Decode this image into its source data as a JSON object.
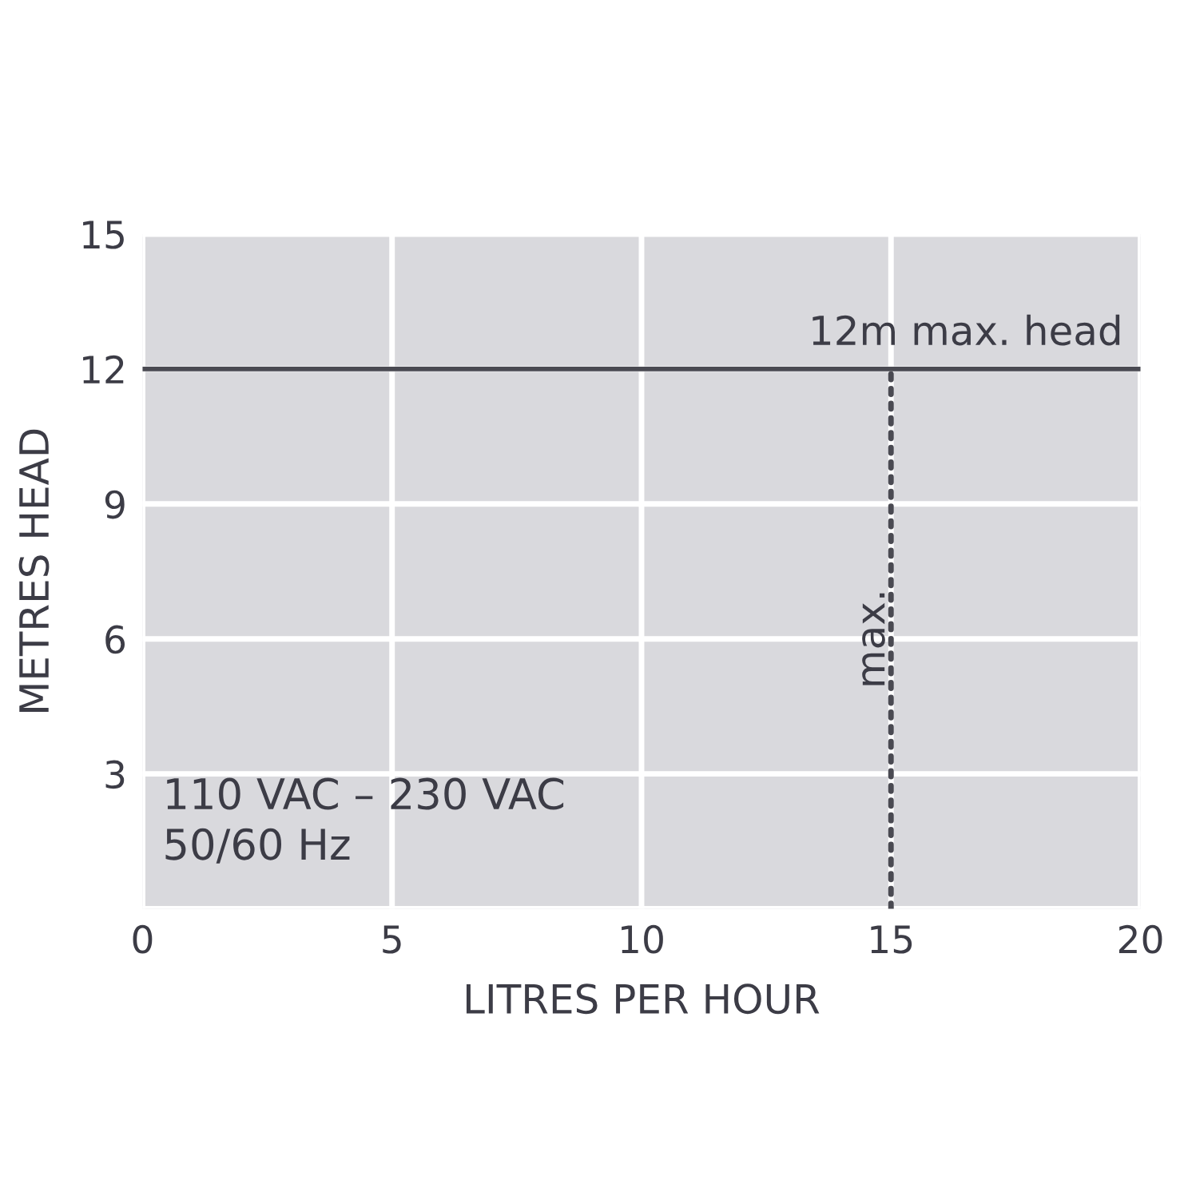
{
  "chart_data": {
    "type": "line",
    "xlabel": "LITRES PER HOUR",
    "ylabel": "METRES HEAD",
    "xlim": [
      0,
      20
    ],
    "ylim": [
      0,
      15
    ],
    "xticks": [
      0,
      5,
      10,
      15,
      20
    ],
    "yticks": [
      {
        "value": 0,
        "label": null
      },
      3,
      6,
      9,
      12,
      15
    ],
    "grid": true,
    "legend": false,
    "marker": "none",
    "series": [
      {
        "x": [
          15,
          15
        ],
        "values": [
          0,
          12
        ],
        "color": "#4a4a52",
        "line_style": "dotted"
      }
    ],
    "ref_lines": [
      {
        "axis": "y",
        "value": 12,
        "label": "12m max. head",
        "color": "#4a4a52",
        "line_style": "solid"
      }
    ],
    "annotations": [
      {
        "text": "max.",
        "x": 15,
        "y": 6
      },
      "110 VAC – 230 VAC\n50/60 Hz"
    ]
  }
}
